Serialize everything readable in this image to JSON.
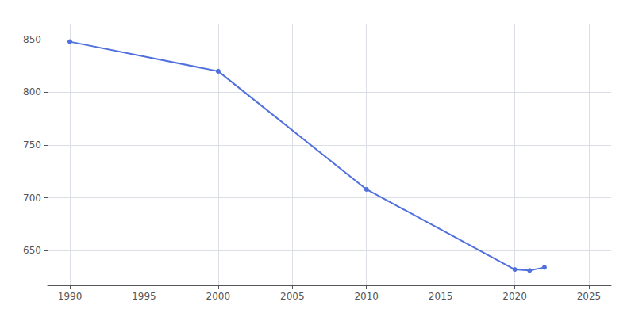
{
  "chart_data": {
    "type": "line",
    "x": [
      1990,
      2000,
      2010,
      2020,
      2021,
      2022
    ],
    "values": [
      848,
      820,
      708,
      632,
      631,
      634
    ],
    "marker": "circle",
    "xlim": [
      1988.5,
      2026.5
    ],
    "ylim": [
      617,
      865
    ],
    "xticks": [
      1990,
      1995,
      2000,
      2005,
      2010,
      2015,
      2020,
      2025
    ],
    "yticks": [
      650,
      700,
      750,
      800,
      850
    ],
    "grid": true
  }
}
